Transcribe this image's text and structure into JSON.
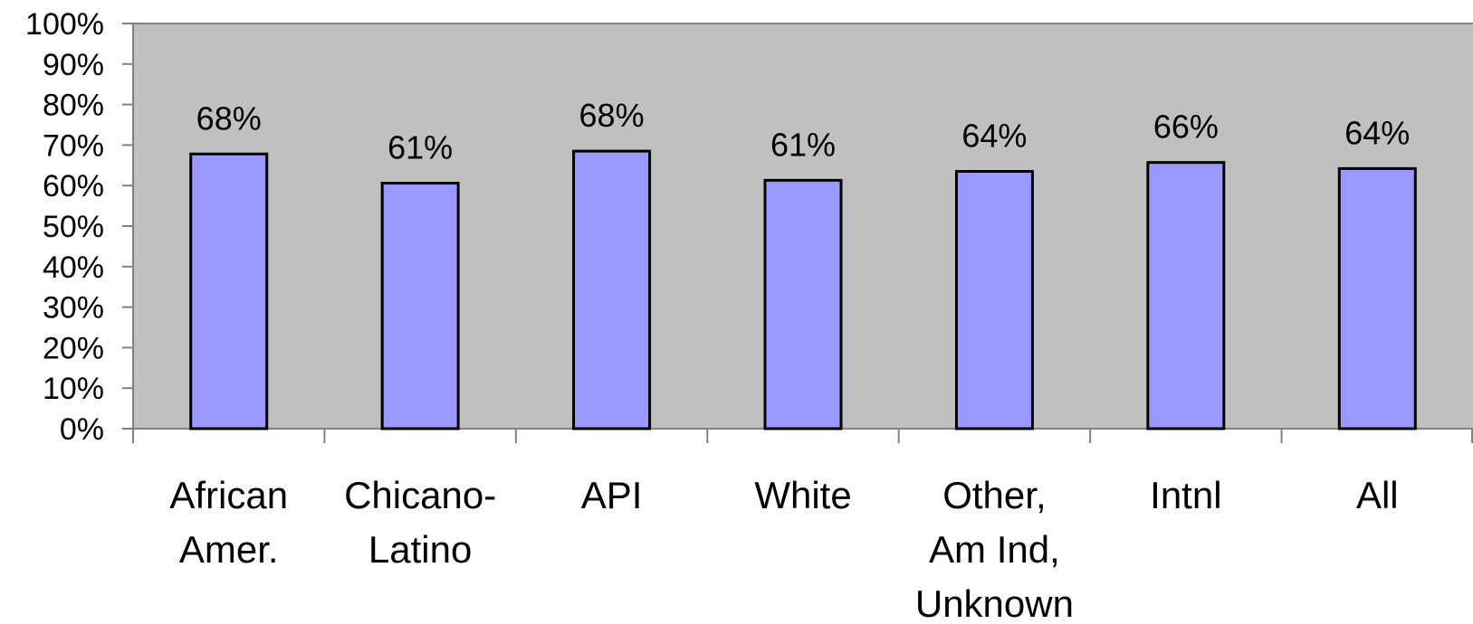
{
  "chart_data": {
    "type": "bar",
    "categories": [
      [
        "African",
        "Amer."
      ],
      [
        "Chicano-",
        "Latino"
      ],
      [
        "API"
      ],
      [
        "White"
      ],
      [
        "Other,",
        "Am Ind,",
        "Unknown"
      ],
      [
        "Intnl"
      ],
      [
        "All"
      ]
    ],
    "values": [
      68,
      61,
      68,
      61,
      64,
      66,
      64
    ],
    "value_labels": [
      "68%",
      "61%",
      "68%",
      "61%",
      "64%",
      "66%",
      "64%"
    ],
    "exact_values": [
      67.8,
      60.6,
      68.5,
      61.3,
      63.5,
      65.7,
      64.2
    ],
    "y_ticks": [
      "0%",
      "10%",
      "20%",
      "30%",
      "40%",
      "50%",
      "60%",
      "70%",
      "80%",
      "90%",
      "100%"
    ],
    "ylim": [
      0,
      100
    ],
    "grid": false,
    "colors": {
      "plot_background": "#c0c0c0",
      "bar_fill": "#9999ff",
      "bar_stroke": "#000000",
      "axis": "#808080"
    }
  }
}
